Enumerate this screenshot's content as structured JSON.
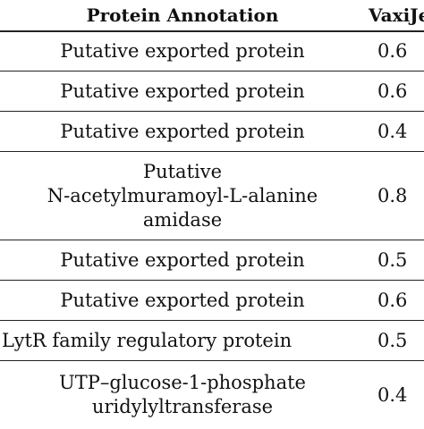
{
  "table": {
    "headers": [
      "Protein Annotation",
      "VaxiJen"
    ],
    "rows": [
      {
        "annotation": "Putative exported protein",
        "score": "0.6"
      },
      {
        "annotation": "Putative exported protein",
        "score": "0.6"
      },
      {
        "annotation": "Putative exported protein",
        "score": "0.4"
      },
      {
        "annotation": "Putative\nN-acetylmuramoyl-L-alanine\namidase",
        "score": "0.8"
      },
      {
        "annotation": "Putative exported protein",
        "score": "0.5"
      },
      {
        "annotation": "Putative exported protein",
        "score": "0.6"
      },
      {
        "annotation": "LytR family regulatory protein",
        "score": "0.5"
      },
      {
        "annotation": "UTP–glucose-1-phosphate\nuridylyltransferase",
        "score": "0.4"
      }
    ]
  }
}
